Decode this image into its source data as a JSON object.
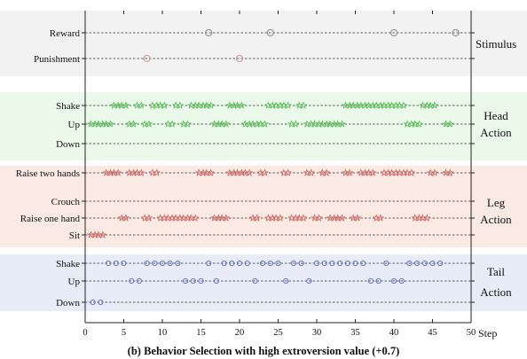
{
  "chart_data": {
    "type": "scatter",
    "caption": "(b) Behavior Selection with high extroversion value (+0.7)",
    "xlabel": "Step",
    "xlim": [
      0,
      50
    ],
    "xticks": [
      0,
      5,
      10,
      15,
      20,
      25,
      30,
      35,
      40,
      45,
      50
    ],
    "panels": [
      {
        "name": "Stimulus",
        "label_lines": [
          "Stimulus"
        ],
        "bg": "#f2f2f2",
        "marker": "circle",
        "color": "#909090",
        "rows": [
          {
            "label": "Reward",
            "x": [
              16,
              24,
              40,
              48
            ]
          },
          {
            "label": "Punishment",
            "x": [
              8,
              20
            ]
          }
        ]
      },
      {
        "name": "Head Action",
        "label_lines": [
          "Head",
          "Action"
        ],
        "bg": "#eaf9ea",
        "marker": "star",
        "color": "#5ec25e",
        "rows": [
          {
            "label": "Shake",
            "x": [
              4,
              5,
              7,
              9,
              10,
              12,
              14,
              15,
              16,
              19,
              20,
              24,
              25,
              26,
              28,
              34,
              35,
              36,
              37,
              38,
              39,
              40,
              41,
              44,
              45
            ]
          },
          {
            "label": "Up",
            "x": [
              1,
              2,
              3,
              6,
              8,
              11,
              13,
              17,
              18,
              21,
              22,
              23,
              27,
              29,
              30,
              31,
              32,
              33,
              42,
              43,
              47
            ]
          },
          {
            "label": "Down",
            "x": []
          }
        ]
      },
      {
        "name": "Leg Action",
        "label_lines": [
          "Leg",
          "Action"
        ],
        "bg": "#fbeae3",
        "marker": "star",
        "color": "#d56a6a",
        "rows": [
          {
            "label": "Raise two hands",
            "x": [
              3,
              4,
              6,
              7,
              9,
              15,
              16,
              19,
              20,
              21,
              23,
              26,
              29,
              31,
              34,
              36,
              37,
              39,
              40,
              41,
              42,
              45,
              47
            ]
          },
          {
            "label": "Crouch",
            "x": []
          },
          {
            "label": "Raise one hand",
            "x": [
              5,
              8,
              10,
              11,
              12,
              13,
              14,
              17,
              18,
              22,
              24,
              25,
              27,
              28,
              30,
              32,
              33,
              35,
              38,
              43,
              44
            ]
          },
          {
            "label": "Sit",
            "x": [
              1,
              2
            ]
          }
        ]
      },
      {
        "name": "Tail Action",
        "label_lines": [
          "Tail",
          "Action"
        ],
        "bg": "#e8ecf9",
        "marker": "ring",
        "color": "#6a74c2",
        "rows": [
          {
            "label": "Shake",
            "x": [
              3,
              4,
              5,
              8,
              9,
              10,
              11,
              12,
              16,
              18,
              19,
              20,
              21,
              23,
              24,
              25,
              27,
              28,
              30,
              31,
              32,
              33,
              34,
              35,
              36,
              39,
              42,
              43,
              44,
              45,
              46
            ]
          },
          {
            "label": "Up",
            "x": [
              6,
              7,
              13,
              14,
              15,
              17,
              22,
              26,
              29,
              37,
              38,
              40,
              41
            ]
          },
          {
            "label": "Down",
            "x": [
              1,
              2
            ]
          }
        ]
      }
    ]
  }
}
